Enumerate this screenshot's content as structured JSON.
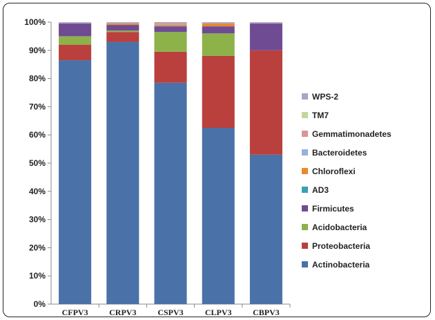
{
  "chart_data": {
    "type": "bar",
    "stacked": true,
    "percent": true,
    "title": "",
    "xlabel": "",
    "ylabel": "",
    "ylim": [
      0,
      100
    ],
    "yticks": [
      "0%",
      "10%",
      "20%",
      "30%",
      "40%",
      "50%",
      "60%",
      "70%",
      "80%",
      "90%",
      "100%"
    ],
    "categories": [
      "CFPV3",
      "CRPV3",
      "CSPV3",
      "CLPV3",
      "CBPV3"
    ],
    "legend_position": "right",
    "grid": false,
    "series": [
      {
        "name": "Actinobacteria",
        "color": "#4a72a8",
        "values": [
          86.5,
          93.0,
          78.5,
          62.5,
          53.0
        ]
      },
      {
        "name": "Proteobacteria",
        "color": "#b9403c",
        "values": [
          5.5,
          3.5,
          11.0,
          25.5,
          37.0
        ]
      },
      {
        "name": "Acidobacteria",
        "color": "#8db24a",
        "values": [
          3.0,
          0.5,
          7.0,
          8.0,
          0.0
        ]
      },
      {
        "name": "Firmicutes",
        "color": "#6f4b94",
        "values": [
          4.5,
          2.0,
          2.0,
          2.5,
          9.5
        ]
      },
      {
        "name": "AD3",
        "color": "#3aa0b2",
        "values": [
          0.0,
          0.0,
          0.0,
          0.0,
          0.0
        ]
      },
      {
        "name": "Chloroflexi",
        "color": "#e8892f",
        "values": [
          0.0,
          0.5,
          0.5,
          1.0,
          0.0
        ]
      },
      {
        "name": "Bacteroidetes",
        "color": "#95b3d7",
        "values": [
          0.3,
          0.3,
          0.5,
          0.3,
          0.3
        ]
      },
      {
        "name": "Gemmatimonadetes",
        "color": "#d99695",
        "values": [
          0.2,
          0.2,
          0.5,
          0.2,
          0.2
        ]
      },
      {
        "name": "TM7",
        "color": "#c3d69b",
        "values": [
          0.0,
          0.0,
          0.0,
          0.0,
          0.0
        ]
      },
      {
        "name": "WPS-2",
        "color": "#b1a0c7",
        "values": [
          0.0,
          0.0,
          0.0,
          0.0,
          0.0
        ]
      }
    ]
  }
}
